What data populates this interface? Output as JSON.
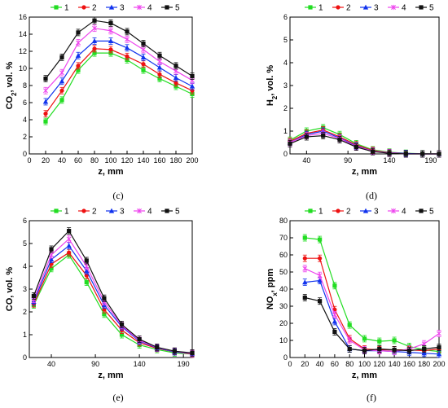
{
  "colors": {
    "1": "#22dd22",
    "2": "#ee1111",
    "3": "#1133ee",
    "4": "#ee44ee",
    "5": "#111111"
  },
  "chart_data": [
    {
      "type": "line",
      "panel_label": "(c)",
      "xlabel": "z, mm",
      "ylabel": "CO2, vol. %",
      "ylabel_main": "CO",
      "ylabel_sub": "2",
      "ylabel_rest": ", vol. %",
      "xlim": [
        0,
        200
      ],
      "ylim": [
        0,
        16
      ],
      "xticks": [
        0,
        20,
        40,
        60,
        80,
        100,
        120,
        140,
        160,
        180,
        200
      ],
      "yticks": [
        0,
        2,
        4,
        6,
        8,
        10,
        12,
        14,
        16
      ],
      "legend": [
        "1",
        "2",
        "3",
        "4",
        "5"
      ],
      "x": [
        20,
        40,
        60,
        80,
        100,
        120,
        140,
        160,
        180,
        200
      ],
      "series": [
        {
          "name": "1",
          "values": [
            3.8,
            6.3,
            9.8,
            11.8,
            11.8,
            11.0,
            9.8,
            8.8,
            7.9,
            7.0
          ]
        },
        {
          "name": "2",
          "values": [
            4.7,
            7.4,
            10.3,
            12.3,
            12.2,
            11.4,
            10.5,
            9.3,
            8.3,
            7.4
          ]
        },
        {
          "name": "3",
          "values": [
            6.1,
            8.5,
            11.5,
            13.2,
            13.2,
            12.4,
            11.3,
            10.1,
            8.9,
            7.9
          ]
        },
        {
          "name": "4",
          "values": [
            7.4,
            9.5,
            13.0,
            14.7,
            14.4,
            13.4,
            12.2,
            10.8,
            9.7,
            8.6
          ]
        },
        {
          "name": "5",
          "values": [
            8.8,
            11.3,
            14.2,
            15.6,
            15.3,
            14.3,
            12.9,
            11.5,
            10.3,
            9.1
          ]
        }
      ]
    },
    {
      "type": "line",
      "panel_label": "(d)",
      "xlabel": "z, mm",
      "ylabel": "H2, vol. %",
      "ylabel_main": "H",
      "ylabel_sub": "2",
      "ylabel_rest": ", vol. %",
      "xlim": [
        20,
        200
      ],
      "ylim": [
        0,
        6
      ],
      "xticks": [
        40,
        90,
        140,
        190
      ],
      "yticks": [
        0,
        1,
        2,
        3,
        4,
        5,
        6
      ],
      "legend": [
        "1",
        "2",
        "3",
        "4",
        "5"
      ],
      "x": [
        20,
        40,
        60,
        80,
        100,
        120,
        140,
        160,
        180,
        200
      ],
      "series": [
        {
          "name": "1",
          "values": [
            0.6,
            1.0,
            1.15,
            0.85,
            0.45,
            0.18,
            0.08,
            0.03,
            0.01,
            0.0
          ]
        },
        {
          "name": "2",
          "values": [
            0.55,
            0.9,
            1.05,
            0.75,
            0.4,
            0.15,
            0.06,
            0.02,
            0.0,
            0.0
          ]
        },
        {
          "name": "3",
          "values": [
            0.5,
            0.85,
            1.0,
            0.7,
            0.35,
            0.12,
            0.05,
            0.02,
            0.0,
            0.0
          ]
        },
        {
          "name": "4",
          "values": [
            0.5,
            0.8,
            0.9,
            0.68,
            0.32,
            0.12,
            0.05,
            0.0,
            0.0,
            0.0
          ]
        },
        {
          "name": "5",
          "values": [
            0.45,
            0.75,
            0.8,
            0.62,
            0.3,
            0.1,
            0.03,
            0.0,
            0.0,
            0.0
          ]
        }
      ]
    },
    {
      "type": "line",
      "panel_label": "(e)",
      "xlabel": "z, mm",
      "ylabel": "CO, vol. %",
      "ylabel_main": "CO",
      "ylabel_sub": "",
      "ylabel_rest": ", vol. %",
      "xlim": [
        15,
        200
      ],
      "ylim": [
        0,
        6
      ],
      "xticks": [
        40,
        90,
        140,
        190
      ],
      "yticks": [
        0,
        1,
        2,
        3,
        4,
        5,
        6
      ],
      "legend": [
        "1",
        "2",
        "3",
        "4",
        "5"
      ],
      "x": [
        20,
        40,
        60,
        80,
        100,
        120,
        140,
        160,
        180,
        200
      ],
      "series": [
        {
          "name": "1",
          "values": [
            2.3,
            3.9,
            4.5,
            3.3,
            1.9,
            1.0,
            0.55,
            0.35,
            0.2,
            0.15
          ]
        },
        {
          "name": "2",
          "values": [
            2.35,
            4.1,
            4.6,
            3.6,
            2.1,
            1.2,
            0.65,
            0.4,
            0.25,
            0.15
          ]
        },
        {
          "name": "3",
          "values": [
            2.45,
            4.3,
            4.9,
            3.8,
            2.3,
            1.35,
            0.72,
            0.42,
            0.25,
            0.17
          ]
        },
        {
          "name": "4",
          "values": [
            2.55,
            4.5,
            5.2,
            4.0,
            2.45,
            1.4,
            0.75,
            0.44,
            0.27,
            0.18
          ]
        },
        {
          "name": "5",
          "values": [
            2.7,
            4.75,
            5.55,
            4.25,
            2.6,
            1.45,
            0.8,
            0.45,
            0.28,
            0.2
          ]
        }
      ]
    },
    {
      "type": "line",
      "panel_label": "(f)",
      "xlabel": "z, mm",
      "ylabel": "NOx, ppm",
      "ylabel_main": "NO",
      "ylabel_sub": "x",
      "ylabel_rest": ", ppm",
      "xlim": [
        0,
        200
      ],
      "ylim": [
        0,
        80
      ],
      "xticks": [
        0,
        20,
        40,
        60,
        80,
        100,
        120,
        140,
        160,
        180,
        200
      ],
      "yticks": [
        0,
        10,
        20,
        30,
        40,
        50,
        60,
        70,
        80
      ],
      "legend": [
        "1",
        "2",
        "3",
        "4",
        "5"
      ],
      "x": [
        20,
        40,
        60,
        80,
        100,
        120,
        140,
        160,
        180,
        200
      ],
      "series": [
        {
          "name": "1",
          "values": [
            70,
            69,
            42,
            19,
            11,
            9.5,
            10,
            6.5,
            4.5,
            3.5
          ]
        },
        {
          "name": "2",
          "values": [
            58,
            58,
            28,
            11,
            5,
            4.5,
            4.5,
            4.5,
            4,
            5
          ]
        },
        {
          "name": "3",
          "values": [
            44,
            45,
            21,
            5,
            4,
            4,
            3.5,
            3,
            2.5,
            2
          ]
        },
        {
          "name": "4",
          "values": [
            52,
            48,
            25,
            10,
            4.5,
            4,
            3.5,
            5,
            8,
            14
          ]
        },
        {
          "name": "5",
          "values": [
            35,
            33,
            15,
            5,
            4,
            5,
            4.5,
            4,
            5,
            6
          ]
        }
      ]
    }
  ]
}
